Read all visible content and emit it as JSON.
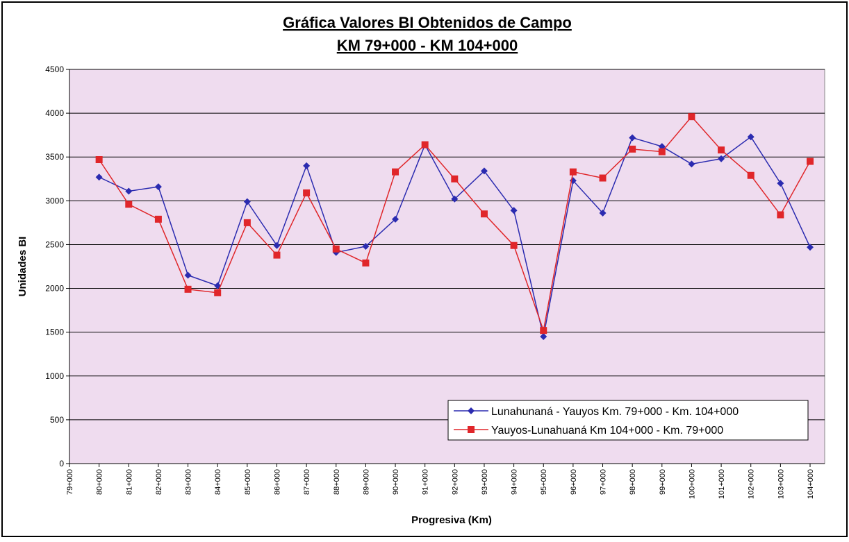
{
  "chart_data": {
    "type": "line",
    "title": "Gráfica Valores BI Obtenidos de Campo",
    "subtitle": "KM 79+000 - KM 104+000",
    "x_label": "Progresiva (Km)",
    "y_label": "Unidades BI",
    "categories": [
      "79+000",
      "80+000",
      "81+000",
      "82+000",
      "83+000",
      "84+000",
      "85+000",
      "86+000",
      "87+000",
      "88+000",
      "89+000",
      "90+000",
      "91+000",
      "92+000",
      "93+000",
      "94+000",
      "95+000",
      "96+000",
      "97+000",
      "98+000",
      "99+000",
      "100+000",
      "101+000",
      "102+000",
      "103+000",
      "104+000"
    ],
    "series": [
      {
        "name": "Lunahunaná - Yauyos Km. 79+000 - Km. 104+000",
        "color": "#2b2bb0",
        "marker": "diamond",
        "values": [
          null,
          3270,
          3110,
          3160,
          2150,
          2030,
          2990,
          2490,
          3400,
          2410,
          2480,
          2790,
          3640,
          3020,
          3340,
          2890,
          1450,
          3230,
          2860,
          3720,
          3620,
          3420,
          3480,
          3730,
          3200,
          2470
        ]
      },
      {
        "name": "Yauyos-Lunahuaná Km 104+000 - Km. 79+000",
        "color": "#e0262a",
        "marker": "square",
        "values": [
          null,
          3470,
          2960,
          2790,
          1990,
          1950,
          2750,
          2380,
          3090,
          2450,
          2290,
          3330,
          3640,
          3250,
          2850,
          2490,
          1520,
          3330,
          3260,
          3590,
          3560,
          3960,
          3580,
          3290,
          2840,
          3450
        ]
      }
    ],
    "ylim": [
      0,
      4500
    ],
    "yticks": [
      0,
      500,
      1000,
      1500,
      2000,
      2500,
      3000,
      3500,
      4000,
      4500
    ],
    "grid": true,
    "legend": "lower-right"
  }
}
